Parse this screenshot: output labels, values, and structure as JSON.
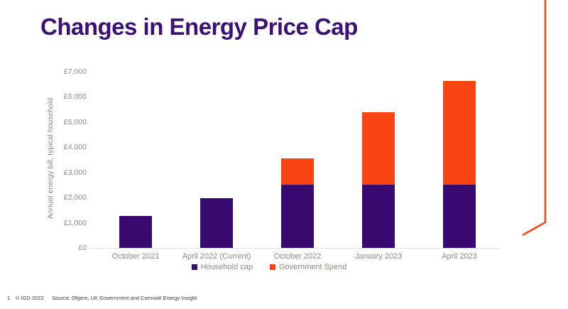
{
  "page": {
    "title": "Changes in Energy Price Cap",
    "footer": {
      "page_number": "1",
      "copyright": "© IGD 2022",
      "source": "Source: Ofgem, UK Government and Cornwall Energy Insight"
    }
  },
  "colors": {
    "title_purple": "#3D1076",
    "household_cap_purple": "#38096E",
    "government_spend_orange": "#F94414",
    "axis_text_gray": "#8B8B85",
    "axis_line_gray": "#E3E3E1",
    "decorative_line_orange": "#F94414",
    "footer_text": "#3D3D3D"
  },
  "chart_data": {
    "type": "bar",
    "stacked": true,
    "title": "",
    "xlabel": "",
    "ylabel": "Annual energy bill, typical household",
    "ylim": [
      0,
      7000
    ],
    "ytick_interval": 1000,
    "ytick_labels": [
      "£0",
      "£1,000",
      "£2,000",
      "£3,000",
      "£4,000",
      "£5,000",
      "£6,000",
      "£7,000"
    ],
    "categories": [
      "October 2021",
      "April 2022 (Current)",
      "October 2022",
      "January 2023",
      "April 2023"
    ],
    "series": [
      {
        "name": "Household cap",
        "color": "#38096E",
        "values": [
          1277,
          1971,
          2500,
          2500,
          2500
        ]
      },
      {
        "name": "Government Spend",
        "color": "#F94414",
        "values": [
          0,
          0,
          1049,
          2887,
          4116
        ]
      }
    ],
    "totals": [
      1277,
      1971,
      3549,
      5387,
      6616
    ],
    "legend_position": "bottom",
    "grid": false
  }
}
